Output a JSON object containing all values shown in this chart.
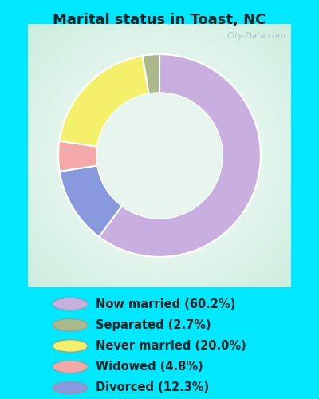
{
  "title": "Marital status in Toast, NC",
  "slices": [
    60.2,
    2.7,
    20.0,
    4.8,
    12.3
  ],
  "labels": [
    "Now married (60.2%)",
    "Separated (2.7%)",
    "Never married (20.0%)",
    "Widowed (4.8%)",
    "Divorced (12.3%)"
  ],
  "colors": [
    "#c9aee0",
    "#aab88a",
    "#f5f06a",
    "#f5a8a8",
    "#8899dd"
  ],
  "bg_outer": "#00e8ff",
  "bg_chart_color1": "#cceedd",
  "bg_chart_color2": "#ffffff",
  "title_fontsize": 13,
  "legend_fontsize": 10.5,
  "watermark": "City-Data.com",
  "donut_order": [
    0,
    4,
    3,
    2,
    1
  ],
  "start_angle": 90,
  "donut_width": 0.38
}
